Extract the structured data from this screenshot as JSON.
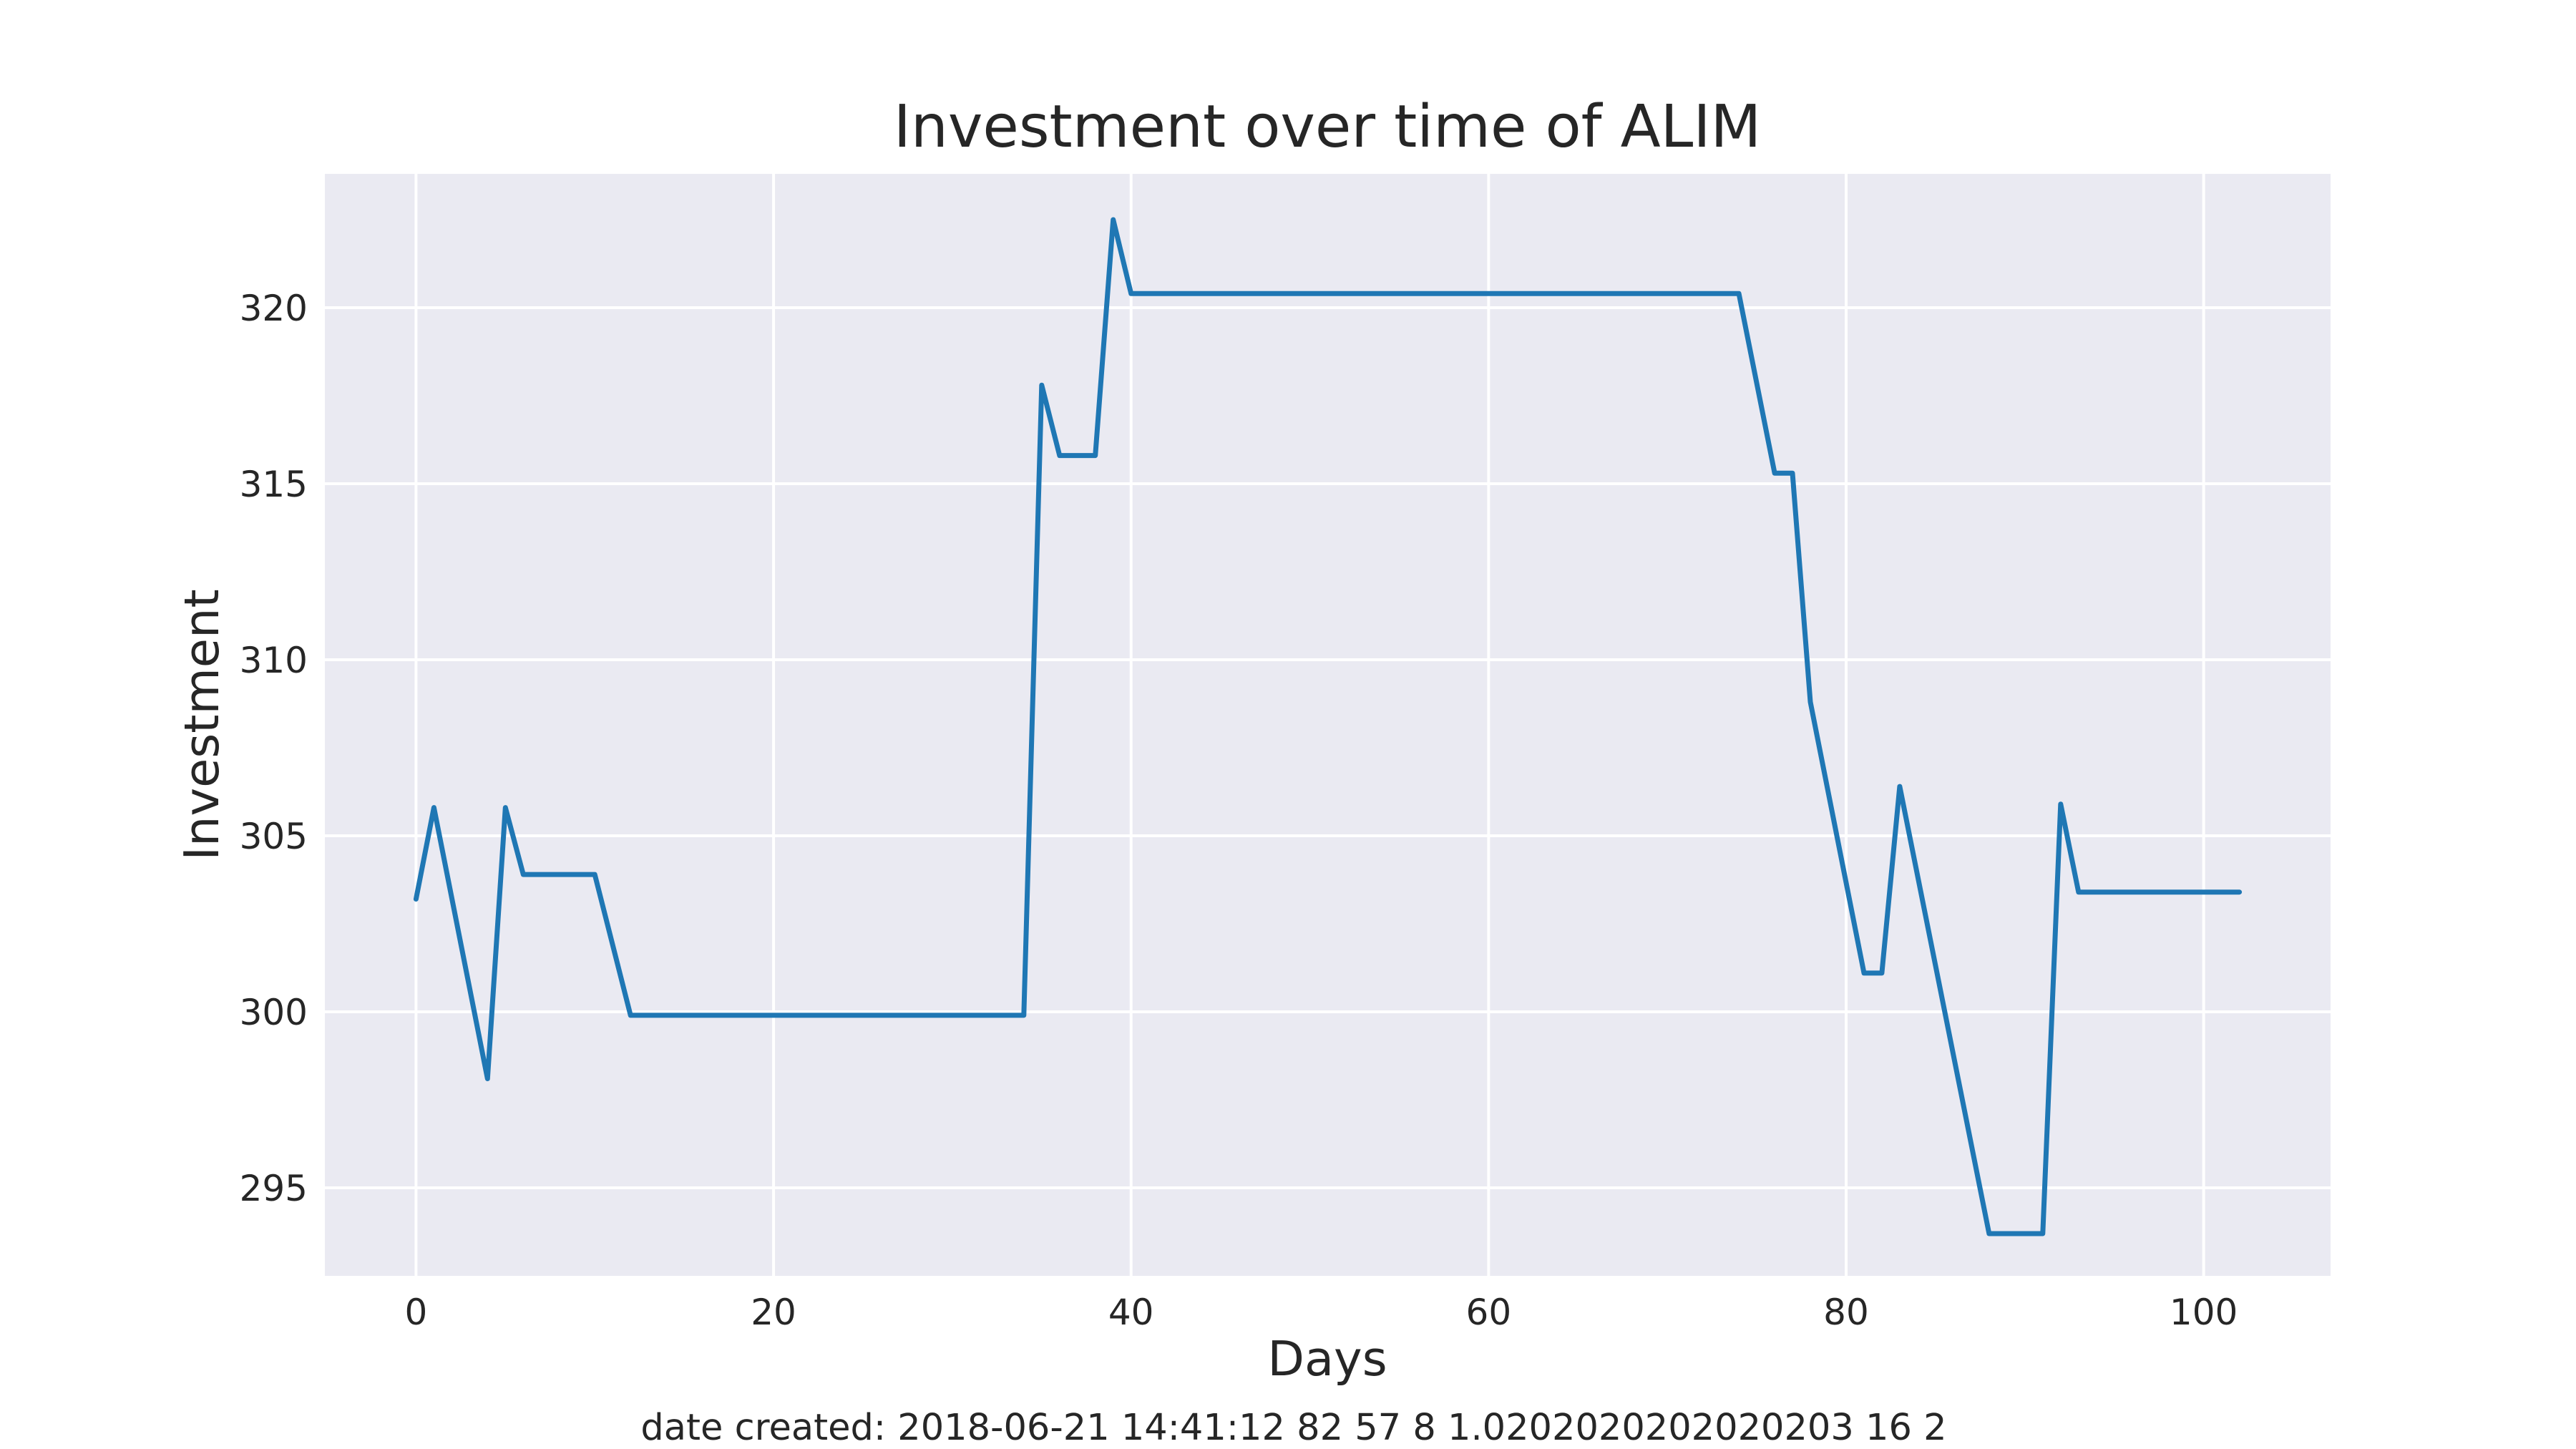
{
  "chart_data": {
    "type": "line",
    "title": "Investment over time of ALIM",
    "xlabel": "Days",
    "ylabel": "Investment",
    "xlim": [
      -5.1,
      107.1
    ],
    "ylim": [
      292.5,
      323.8
    ],
    "grid": true,
    "legend": "none",
    "xticks": [
      0,
      20,
      40,
      60,
      80,
      100
    ],
    "yticks": [
      295,
      300,
      305,
      310,
      315,
      320
    ],
    "series": [
      {
        "color": "#1f77b4",
        "x": [
          0,
          1,
          4,
          5,
          6,
          10,
          12,
          34,
          35,
          36,
          38,
          39,
          40,
          74,
          76,
          77,
          78,
          81,
          82,
          83,
          88,
          91,
          92,
          93,
          102
        ],
        "y": [
          303.2,
          305.8,
          298.1,
          305.8,
          303.9,
          303.9,
          299.9,
          299.9,
          317.8,
          315.8,
          315.8,
          322.5,
          320.4,
          320.4,
          315.3,
          315.3,
          308.8,
          301.1,
          301.1,
          306.4,
          293.7,
          293.7,
          305.9,
          303.4,
          303.4
        ]
      }
    ]
  },
  "footer": {
    "text": "date created: 2018-06-21 14:41:12 82 57 8 1.0202020202020203 16 2"
  },
  "colors": {
    "plot_background": "#eaeaf2",
    "grid": "#ffffff",
    "line": "#1f77b4",
    "text": "#262626"
  }
}
